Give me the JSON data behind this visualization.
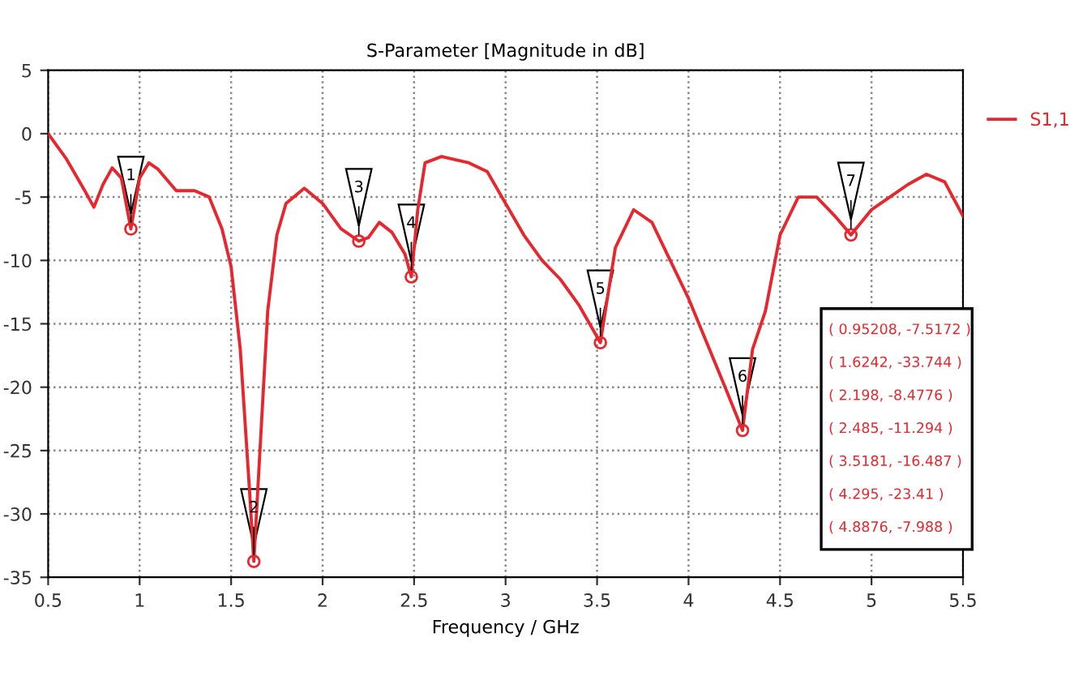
{
  "chart_data": {
    "type": "line",
    "title": "S-Parameter [Magnitude in dB]",
    "xlabel": "Frequency / GHz",
    "series": [
      {
        "name": "S1,1",
        "color": "#e8262d",
        "x": [
          0.5,
          0.6,
          0.7,
          0.75,
          0.8,
          0.85,
          0.9,
          0.95208,
          1.0,
          1.05,
          1.1,
          1.2,
          1.3,
          1.38,
          1.45,
          1.5,
          1.55,
          1.6,
          1.6242,
          1.65,
          1.7,
          1.75,
          1.8,
          1.9,
          2.0,
          2.1,
          2.198,
          2.25,
          2.31,
          2.38,
          2.45,
          2.485,
          2.52,
          2.56,
          2.65,
          2.8,
          2.9,
          3.0,
          3.1,
          3.2,
          3.3,
          3.4,
          3.5181,
          3.6,
          3.7,
          3.8,
          3.9,
          4.0,
          4.1,
          4.2,
          4.295,
          4.35,
          4.42,
          4.5,
          4.6,
          4.7,
          4.8,
          4.8876,
          5.0,
          5.1,
          5.2,
          5.3,
          5.4,
          5.5
        ],
        "values": [
          0,
          -2,
          -4.5,
          -5.8,
          -4,
          -2.7,
          -3.5,
          -7.5172,
          -3.5,
          -2.3,
          -2.8,
          -4.5,
          -4.5,
          -5,
          -7.5,
          -10.5,
          -17,
          -28,
          -33.744,
          -27,
          -14,
          -8,
          -5.5,
          -4.3,
          -5.5,
          -7.5,
          -8.4776,
          -8.2,
          -7,
          -7.8,
          -9.5,
          -11.294,
          -6,
          -2.3,
          -1.8,
          -2.3,
          -3,
          -5.5,
          -8,
          -10,
          -11.5,
          -13.5,
          -16.487,
          -9,
          -6,
          -7,
          -10,
          -13,
          -16.5,
          -20,
          -23.41,
          -17,
          -14,
          -8,
          -5,
          -5,
          -6.5,
          -7.988,
          -6,
          -5,
          -4,
          -3.2,
          -3.8,
          -6.5
        ]
      }
    ],
    "xlim": [
      0.5,
      5.5
    ],
    "ylim": [
      -35,
      5
    ],
    "xticks": [
      0.5,
      1,
      1.5,
      2,
      2.5,
      3,
      3.5,
      4,
      4.5,
      5,
      5.5
    ],
    "yticks": [
      -35,
      -30,
      -25,
      -20,
      -15,
      -10,
      -5,
      0,
      5
    ],
    "grid": true,
    "legend": "top right",
    "line_style": "solid",
    "marker": "none",
    "annotations": [
      {
        "text": "1",
        "x": 0.95208,
        "y": -7.5172
      },
      {
        "text": "2",
        "x": 1.6242,
        "y": -33.744
      },
      {
        "text": "3",
        "x": 2.198,
        "y": -8.4776
      },
      {
        "text": "4",
        "x": 2.485,
        "y": -11.294
      },
      {
        "text": "5",
        "x": 3.5181,
        "y": -16.487
      },
      {
        "text": "6",
        "x": 4.295,
        "y": -23.41
      },
      {
        "text": "7",
        "x": 4.8876,
        "y": -7.988
      },
      "( 0.95208, -7.5172 )",
      "( 1.6242, -33.744 )",
      "( 2.198, -8.4776 )",
      "( 2.485, -11.294 )",
      "( 3.5181, -16.487 )",
      "( 4.295, -23.41 )",
      "( 4.8876, -7.988 )"
    ]
  }
}
